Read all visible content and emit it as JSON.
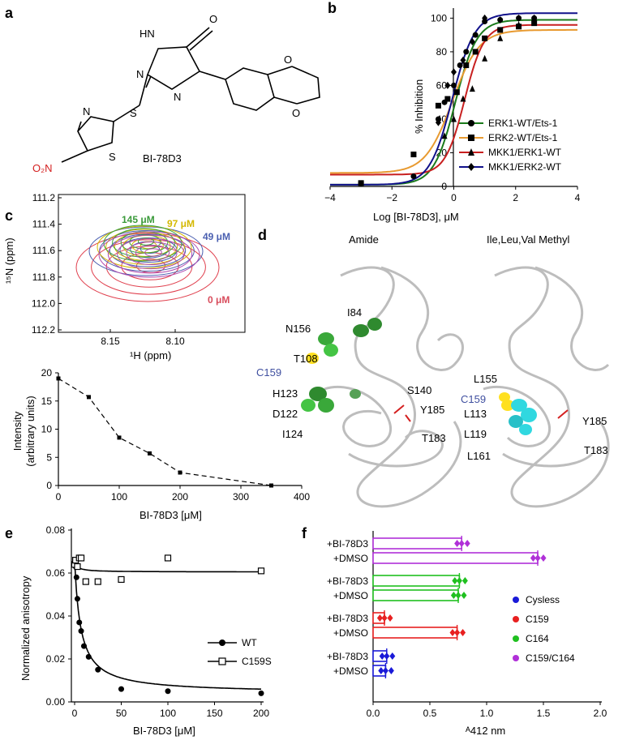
{
  "panels": {
    "a": {
      "label": "a",
      "compound": "BI-78D3",
      "atoms": {
        "hn": "HN",
        "n": "N",
        "n2": "N",
        "o_carbonyl": "O",
        "s_link": "S",
        "n_thiaz": "N",
        "s_thiaz": "S",
        "o1": "O",
        "o2": "O",
        "nitro": "O₂N"
      }
    },
    "b": {
      "label": "b",
      "xlabel": "Log [BI-78D3], μM",
      "ylabel": "% Inhibition",
      "xticks": [
        "−4",
        "−2",
        "0",
        "2",
        "4"
      ],
      "yticks": [
        "0",
        "20",
        "40",
        "60",
        "80",
        "100"
      ]
    },
    "c": {
      "label": "c",
      "nmr_xlabel": "¹H (ppm)",
      "nmr_ylabel": "¹⁵N (ppm)",
      "nmr_xticks": [
        "8.15",
        "8.10"
      ],
      "nmr_yticks": [
        "111.2",
        "111.4",
        "111.6",
        "111.8",
        "112.0",
        "112.2"
      ],
      "conc_labels": [
        {
          "text": "145 μM",
          "color": "#3a9a3a"
        },
        {
          "text": "97 μM",
          "color": "#d4b800"
        },
        {
          "text": "49 μM",
          "color": "#4a5fb0"
        },
        {
          "text": "0 μM",
          "color": "#d84c5c"
        }
      ],
      "int_xlabel": "BI-78D3 [μM]",
      "int_ylabel": "Intensity (arbitrary units)",
      "int_ylabel1": "Intensity",
      "int_ylabel2": "(arbitrary units)",
      "int_xticks": [
        "0",
        "100",
        "200",
        "300",
        "400"
      ],
      "int_yticks": [
        "0",
        "5",
        "10",
        "15",
        "20"
      ]
    },
    "d": {
      "label": "d",
      "left_title": "Amide",
      "right_title": "Ile,Leu,Val Methyl",
      "left_residues": [
        "I84",
        "N156",
        "T108",
        "C159",
        "H123",
        "D122",
        "I124",
        "S140",
        "Y185",
        "T183"
      ],
      "right_residues": [
        "L155",
        "C159",
        "L113",
        "L119",
        "L161",
        "Y185",
        "T183"
      ]
    },
    "e": {
      "label": "e",
      "xlabel": "BI-78D3 [μM]",
      "ylabel": "Normalized anisotropy",
      "xticks": [
        "0",
        "50",
        "100",
        "150",
        "200"
      ],
      "yticks": [
        "0.00",
        "0.02",
        "0.04",
        "0.06",
        "0.08"
      ]
    },
    "f": {
      "label": "f",
      "xlabel": "ᴬ412 nm",
      "xticks": [
        "0.0",
        "0.5",
        "1.0",
        "1.5",
        "2.0"
      ],
      "bar_labels": [
        "+BI-78D3",
        "+DMSO",
        "+BI-78D3",
        "+DMSO",
        "+BI-78D3",
        "+DMSO",
        "+BI-78D3",
        "+DMSO"
      ]
    }
  },
  "chart_data": [
    {
      "panel": "b",
      "type": "scatter",
      "xlim": [
        -4,
        4
      ],
      "ylim": [
        0,
        105
      ],
      "legend_position": "bottom-right",
      "series": [
        {
          "name": "ERK1-WT/Ets-1",
          "color": "#1a7a1a",
          "marker": "circle",
          "x": [
            -3,
            -1.3,
            -0.5,
            -0.3,
            0,
            0.2,
            0.4,
            0.7,
            1.0,
            1.5,
            2.1,
            2.6
          ],
          "y": [
            2,
            6,
            40,
            50,
            60,
            72,
            80,
            90,
            98,
            99,
            100,
            100
          ]
        },
        {
          "name": "ERK2-WT/Ets-1",
          "color": "#e89a30",
          "marker": "square",
          "x": [
            -3,
            -1.3,
            -0.5,
            -0.2,
            0.1,
            0.4,
            0.7,
            1.0,
            1.5,
            2.1,
            2.6
          ],
          "y": [
            2,
            19,
            48,
            52,
            56,
            72,
            80,
            88,
            93,
            95,
            97
          ]
        },
        {
          "name": "MKK1/ERK1-WT",
          "color": "#c82020",
          "marker": "triangle",
          "x": [
            -0.3,
            0,
            0.3,
            0.6,
            1.0,
            1.5,
            2.1,
            2.6
          ],
          "y": [
            30,
            40,
            52,
            58,
            76,
            88,
            96,
            100
          ]
        },
        {
          "name": "MKK1/ERK2-WT",
          "color": "#10108a",
          "marker": "diamond",
          "x": [
            -0.5,
            -0.2,
            0,
            0.3,
            0.6,
            1.0,
            1.5,
            2.1,
            2.6
          ],
          "y": [
            38,
            60,
            68,
            75,
            86,
            100,
            99,
            100,
            100
          ]
        }
      ],
      "curves": [
        {
          "series": "ERK1-WT/Ets-1",
          "bottom": 1,
          "top": 99,
          "logec50": 0.05,
          "hill": 1.25
        },
        {
          "series": "ERK2-WT/Ets-1",
          "bottom": 8,
          "top": 93,
          "logec50": -0.05,
          "hill": 1.0
        },
        {
          "series": "MKK1/ERK1-WT",
          "bottom": 7,
          "top": 96,
          "logec50": 0.35,
          "hill": 1.4
        },
        {
          "series": "MKK1/ERK2-WT",
          "bottom": 1,
          "top": 103,
          "logec50": -0.05,
          "hill": 1.2
        }
      ]
    },
    {
      "panel": "c",
      "type": "line",
      "xlim": [
        0,
        400
      ],
      "ylim": [
        0,
        20
      ],
      "series": [
        {
          "name": "",
          "x": [
            0,
            50,
            100,
            150,
            200,
            350
          ],
          "y": [
            19,
            15.7,
            8.5,
            5.7,
            2.3,
            0
          ]
        }
      ]
    },
    {
      "panel": "e",
      "type": "scatter",
      "xlim": [
        0,
        200
      ],
      "ylim": [
        0,
        0.08
      ],
      "legend_position": "right",
      "series": [
        {
          "name": "WT",
          "marker": "filled-circle",
          "x": [
            0,
            0.5,
            1,
            2,
            3,
            5,
            7,
            10,
            15,
            25,
            50,
            100,
            200
          ],
          "y": [
            0.065,
            0.064,
            0.063,
            0.058,
            0.048,
            0.037,
            0.033,
            0.026,
            0.021,
            0.015,
            0.006,
            0.005,
            0.004
          ]
        },
        {
          "name": "C159S",
          "marker": "open-square",
          "x": [
            0,
            1,
            3,
            5,
            7,
            12,
            25,
            50,
            100,
            200
          ],
          "y": [
            0.064,
            0.066,
            0.063,
            0.067,
            0.067,
            0.056,
            0.056,
            0.057,
            0.067,
            0.061
          ]
        }
      ]
    },
    {
      "panel": "f",
      "type": "bar",
      "xlim": [
        0,
        2.0
      ],
      "legend_position": "right",
      "categories": [
        "C159/C164 +BI-78D3",
        "C159/C164 +DMSO",
        "C164 +BI-78D3",
        "C164 +DMSO",
        "C159 +BI-78D3",
        "C159 +DMSO",
        "Cysless +BI-78D3",
        "Cysless +DMSO"
      ],
      "values": [
        0.78,
        1.45,
        0.76,
        0.75,
        0.1,
        0.74,
        0.12,
        0.11
      ],
      "series_colors": {
        "Cysless": "#1a1ad8",
        "C159": "#e82020",
        "C164": "#20c020",
        "C159/C164": "#b030d8"
      },
      "legend": [
        "Cysless",
        "C159",
        "C164",
        "C159/C164"
      ]
    }
  ]
}
